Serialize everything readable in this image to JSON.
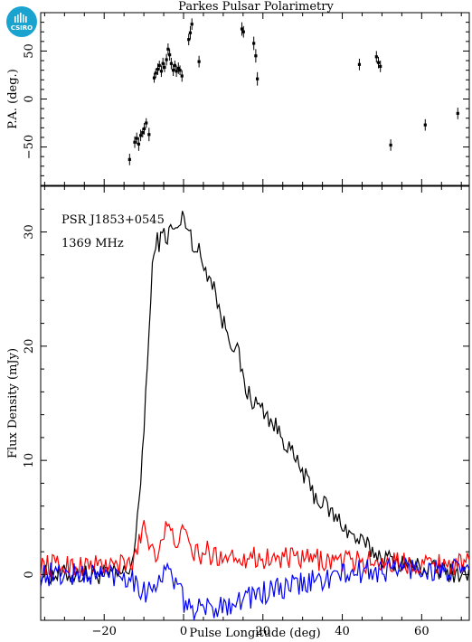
{
  "logo": {
    "text": "CSIRO",
    "color": "#1aa3cf"
  },
  "chart_data": [
    {
      "type": "scatter",
      "title": "Parkes Pulsar Polarimetry",
      "xlabel": "",
      "ylabel": "P.A. (deg.)",
      "xlim": [
        -36,
        72
      ],
      "ylim": [
        -90,
        90
      ],
      "yticks": [
        -50,
        0,
        50
      ],
      "points": [
        [
          -13.6,
          -63,
          6
        ],
        [
          -12.3,
          -45,
          6
        ],
        [
          -11.8,
          -41,
          6
        ],
        [
          -11.3,
          -47,
          7
        ],
        [
          -10.8,
          -38,
          6
        ],
        [
          -10.3,
          -35,
          5
        ],
        [
          -9.9,
          -31,
          6
        ],
        [
          -9.4,
          -25,
          5
        ],
        [
          -8.7,
          -37,
          7
        ],
        [
          -7.4,
          22,
          5
        ],
        [
          -7.0,
          27,
          5
        ],
        [
          -6.5,
          31,
          6
        ],
        [
          -6.1,
          35,
          5
        ],
        [
          -5.6,
          29,
          6
        ],
        [
          -5.2,
          37,
          6
        ],
        [
          -4.8,
          33,
          5
        ],
        [
          -4.3,
          41,
          6
        ],
        [
          -3.9,
          52,
          6
        ],
        [
          -3.5,
          46,
          6
        ],
        [
          -3.1,
          37,
          6
        ],
        [
          -2.6,
          30,
          6
        ],
        [
          -2.2,
          35,
          5
        ],
        [
          -1.8,
          29,
          6
        ],
        [
          -1.3,
          32,
          6
        ],
        [
          -0.9,
          30,
          5
        ],
        [
          -0.4,
          24,
          6
        ],
        [
          1.3,
          62,
          6
        ],
        [
          1.7,
          69,
          7
        ],
        [
          2.1,
          78,
          6
        ],
        [
          3.9,
          39,
          6
        ],
        [
          14.7,
          73,
          7
        ],
        [
          15.1,
          70,
          6
        ],
        [
          17.7,
          58,
          7
        ],
        [
          18.2,
          45,
          7
        ],
        [
          18.6,
          21,
          7
        ],
        [
          44.3,
          36,
          6
        ],
        [
          48.6,
          44,
          6
        ],
        [
          49.1,
          38,
          6
        ],
        [
          49.6,
          34,
          6
        ],
        [
          52.2,
          -48,
          6
        ],
        [
          60.9,
          -27,
          6
        ],
        [
          69.1,
          -15,
          6
        ]
      ]
    },
    {
      "type": "line",
      "title": "",
      "annotations": [
        "PSR J1853+0545",
        "1369 MHz"
      ],
      "xlabel": "Pulse Longitude (deg)",
      "ylabel": "Flux Density (mJy)",
      "xlim": [
        -36,
        72
      ],
      "ylim": [
        -4,
        34
      ],
      "xticks": [
        -20,
        0,
        20,
        40,
        60
      ],
      "yticks": [
        0,
        10,
        20,
        30
      ],
      "series": [
        {
          "color": "#000000",
          "x": [
            -36,
            -16,
            -14,
            -13,
            -12,
            -11,
            -10,
            -9,
            -8,
            -7,
            -6,
            -5,
            -4,
            -3,
            -2,
            -1,
            0,
            1,
            2,
            3,
            4,
            5,
            6,
            7,
            8,
            9,
            10,
            11,
            12,
            13,
            14,
            15,
            16,
            18,
            20,
            22,
            24,
            26,
            28,
            30,
            32,
            34,
            36,
            38,
            40,
            42,
            44,
            46,
            48,
            50,
            55,
            60,
            65,
            72
          ],
          "y": [
            0,
            0,
            0.3,
            1.2,
            3,
            7,
            13,
            19,
            26,
            29.5,
            29,
            30,
            29.5,
            30.5,
            30,
            30.5,
            31.5,
            30.5,
            29.5,
            28.5,
            28.2,
            27,
            26.5,
            26,
            25,
            23,
            22,
            21.5,
            20.5,
            20,
            19,
            17,
            16,
            15,
            14.5,
            13.5,
            12.5,
            11.5,
            10,
            9,
            7.5,
            6.5,
            6,
            5,
            4.5,
            3.5,
            3,
            2.5,
            2,
            1.5,
            1,
            0.6,
            0.3,
            0
          ]
        },
        {
          "color": "#ff0000",
          "x": [
            -36,
            -14,
            -13,
            -12,
            -11,
            -10,
            -9,
            -8,
            -7,
            -6,
            -5,
            -4,
            -3,
            -2,
            -1,
            0,
            2,
            4,
            6,
            8,
            10,
            14,
            18,
            22,
            26,
            30,
            34,
            38,
            42,
            46,
            50,
            60,
            72
          ],
          "y": [
            0.8,
            0.8,
            1,
            1.8,
            3,
            4.8,
            3,
            2.5,
            2,
            2.5,
            3.5,
            4.3,
            3.2,
            3,
            3.5,
            3.5,
            2.2,
            1.6,
            2,
            1.5,
            1.8,
            1.6,
            1.5,
            1.4,
            1.4,
            1.3,
            1.3,
            1.2,
            1.2,
            1.1,
            1.1,
            1,
            0.9
          ]
        },
        {
          "color": "#0000ff",
          "x": [
            -36,
            -14,
            -13,
            -12,
            -11,
            -10,
            -9,
            -8,
            -7,
            -6,
            -5,
            -4,
            -3,
            -2,
            -1,
            0,
            2,
            4,
            6,
            8,
            10,
            14,
            18,
            22,
            26,
            30,
            34,
            38,
            42,
            46,
            50,
            55,
            60,
            65,
            72
          ],
          "y": [
            0,
            0,
            -0.3,
            -0.6,
            -1,
            -1.6,
            -1.4,
            -1,
            -0.6,
            -0.3,
            0,
            0.2,
            0,
            -0.6,
            -1.6,
            -2.4,
            -2.8,
            -3.2,
            -3,
            -2.8,
            -2.6,
            -2.2,
            -1.8,
            -1.5,
            -1.2,
            -0.8,
            -0.5,
            -0.2,
            0.1,
            0.3,
            0.4,
            0.6,
            0.5,
            0.3,
            0.2
          ]
        }
      ]
    }
  ]
}
